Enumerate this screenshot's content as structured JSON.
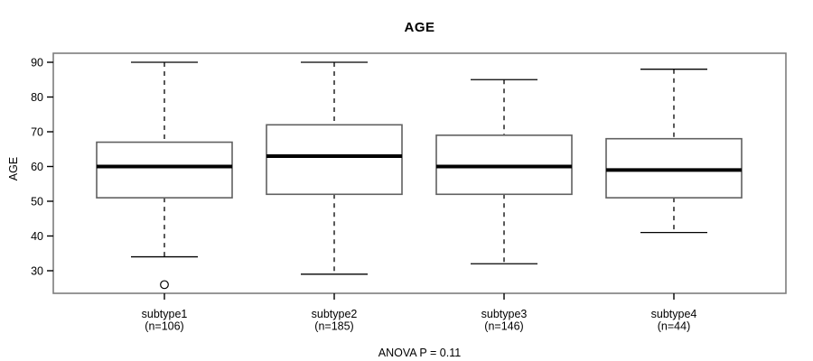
{
  "chart_data": {
    "type": "boxplot",
    "title": "AGE",
    "ylabel": "AGE",
    "xlabel": "",
    "annotation": "ANOVA P = 0.11",
    "yticks": [
      30,
      40,
      50,
      60,
      70,
      80,
      90
    ],
    "ylim": [
      23.5,
      92.6
    ],
    "grid": false,
    "legend": "none",
    "groups": [
      {
        "label": "subtype1",
        "count_label": "(n=106)",
        "n": 106,
        "whisker_low": 34,
        "q1": 51,
        "median": 60,
        "q3": 67,
        "whisker_high": 90,
        "outliers": [
          26
        ]
      },
      {
        "label": "subtype2",
        "count_label": "(n=185)",
        "n": 185,
        "whisker_low": 29,
        "q1": 52,
        "median": 63,
        "q3": 72,
        "whisker_high": 90,
        "outliers": []
      },
      {
        "label": "subtype3",
        "count_label": "(n=146)",
        "n": 146,
        "whisker_low": 32,
        "q1": 52,
        "median": 60,
        "q3": 69,
        "whisker_high": 85,
        "outliers": []
      },
      {
        "label": "subtype4",
        "count_label": "(n=44)",
        "n": 44,
        "whisker_low": 41,
        "q1": 51,
        "median": 59,
        "q3": 68,
        "whisker_high": 88,
        "outliers": []
      }
    ],
    "colors": {
      "background": "#ffffff",
      "frame": "#7d7d7d",
      "box_border": "#606060",
      "box_fill": "#ffffff",
      "median": "#000000",
      "whisker": "#000000",
      "outlier": "#000000",
      "tick": "#000000",
      "text": "#000000"
    }
  }
}
